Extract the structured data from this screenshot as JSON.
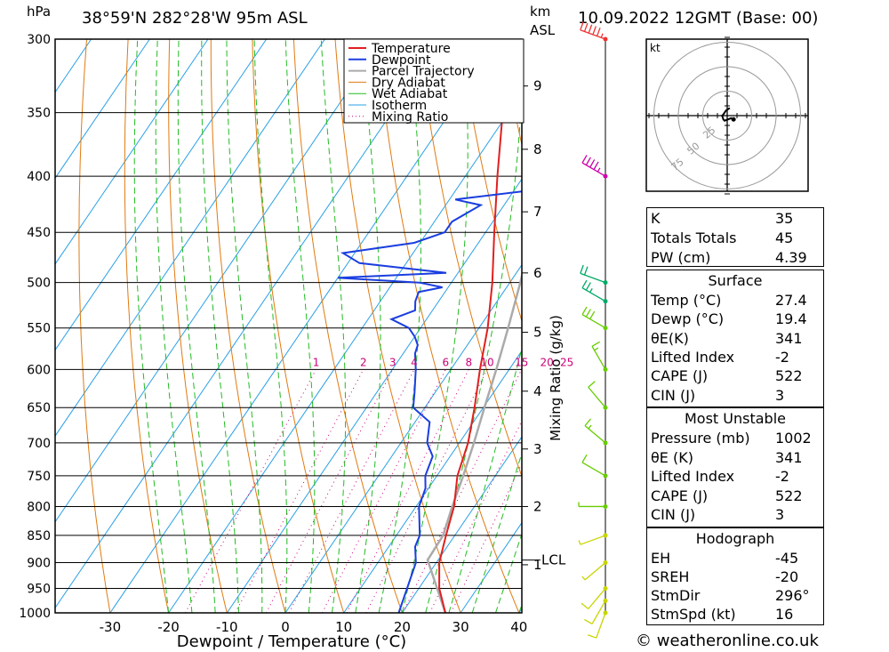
{
  "header": {
    "unit_hpa": "hPa",
    "location": "38°59'N  282°28'W  95m  ASL",
    "unit_km": "km",
    "unit_asl": "ASL",
    "datetime": "10.09.2022  12GMT  (Base: 00)"
  },
  "footer": {
    "copyright": "© weatheronline.co.uk"
  },
  "colors": {
    "temperature": "#e02020",
    "dewpoint": "#1a3ee0",
    "parcel": "#aaaaaa",
    "dry_adiabat": "#e07a10",
    "wet_adiabat": "#22bb22",
    "isotherm": "#2aa0e6",
    "mixing_ratio": "#cc0077"
  },
  "chart_data": {
    "type": "skew-t log-p",
    "xlabel": "Dewpoint / Temperature (°C)",
    "ylabel_left": "hPa",
    "ylabel_right": "Mixing Ratio (g/kg)",
    "pressure_ticks": [
      300,
      350,
      400,
      450,
      500,
      550,
      600,
      650,
      700,
      750,
      800,
      850,
      900,
      950,
      1000
    ],
    "temperature_ticks": [
      -30,
      -20,
      -10,
      0,
      10,
      20,
      30,
      40
    ],
    "height_km_ticks": [
      {
        "km": 1,
        "p": 904
      },
      {
        "km": 2,
        "p": 800
      },
      {
        "km": 3,
        "p": 709
      },
      {
        "km": 4,
        "p": 628
      },
      {
        "km": 5,
        "p": 555
      },
      {
        "km": 6,
        "p": 490
      },
      {
        "km": 7,
        "p": 431
      },
      {
        "km": 8,
        "p": 378
      },
      {
        "km": 9,
        "p": 331
      }
    ],
    "lcl": {
      "label": "LCL",
      "p": 895
    },
    "mixing_ratio_labels": [
      "1",
      "2",
      "3",
      "4",
      "6",
      "8",
      "10",
      "15",
      "20",
      "25"
    ],
    "mixing_ratio_values": [
      1,
      2,
      3,
      4,
      6,
      8,
      10,
      15,
      20,
      25
    ],
    "legend": [
      "Temperature",
      "Dewpoint",
      "Parcel Trajectory",
      "Dry Adiabat",
      "Wet Adiabat",
      "Isotherm",
      "Mixing Ratio"
    ],
    "temperature": [
      [
        1000,
        27.4
      ],
      [
        950,
        23.5
      ],
      [
        900,
        20.5
      ],
      [
        850,
        18.5
      ],
      [
        800,
        16.5
      ],
      [
        750,
        13.5
      ],
      [
        700,
        11.5
      ],
      [
        650,
        8.5
      ],
      [
        600,
        5
      ],
      [
        550,
        1.5
      ],
      [
        500,
        -3
      ],
      [
        450,
        -8.5
      ],
      [
        400,
        -14.5
      ],
      [
        350,
        -21
      ],
      [
        300,
        -29
      ]
    ],
    "dewpoint": [
      [
        1000,
        19.4
      ],
      [
        950,
        18
      ],
      [
        900,
        16.5
      ],
      [
        870,
        14.5
      ],
      [
        850,
        14
      ],
      [
        800,
        10.5
      ],
      [
        770,
        9.5
      ],
      [
        750,
        8
      ],
      [
        720,
        7
      ],
      [
        700,
        4.5
      ],
      [
        670,
        2.5
      ],
      [
        650,
        -2
      ],
      [
        630,
        -3.5
      ],
      [
        600,
        -6
      ],
      [
        580,
        -8
      ],
      [
        570,
        -8.5
      ],
      [
        560,
        -10
      ],
      [
        550,
        -12
      ],
      [
        540,
        -16
      ],
      [
        530,
        -13
      ],
      [
        520,
        -14
      ],
      [
        510,
        -14.5
      ],
      [
        505,
        -11
      ],
      [
        500,
        -15.5
      ],
      [
        495,
        -30
      ],
      [
        490,
        -12
      ],
      [
        480,
        -28
      ],
      [
        470,
        -32
      ],
      [
        460,
        -21
      ],
      [
        450,
        -17
      ],
      [
        440,
        -17
      ],
      [
        425,
        -14
      ],
      [
        420,
        -19
      ],
      [
        410,
        -4
      ],
      [
        400,
        -3
      ],
      [
        380,
        -9
      ],
      [
        350,
        -14
      ],
      [
        300,
        -26
      ]
    ],
    "parcel": [
      [
        1000,
        27.4
      ],
      [
        895,
        18.2
      ],
      [
        850,
        18
      ],
      [
        800,
        16.2
      ],
      [
        750,
        14.5
      ],
      [
        700,
        12.5
      ],
      [
        650,
        10.2
      ],
      [
        600,
        7.8
      ],
      [
        550,
        5
      ],
      [
        500,
        1.8
      ],
      [
        450,
        -2
      ],
      [
        400,
        -6.8
      ],
      [
        350,
        -13
      ],
      [
        300,
        -21
      ]
    ],
    "wind_profile": [
      {
        "p": 1000,
        "dir": 200,
        "kt": 10
      },
      {
        "p": 975,
        "dir": 210,
        "kt": 12
      },
      {
        "p": 950,
        "dir": 220,
        "kt": 10
      },
      {
        "p": 900,
        "dir": 230,
        "kt": 5
      },
      {
        "p": 850,
        "dir": 250,
        "kt": 5
      },
      {
        "p": 800,
        "dir": 270,
        "kt": 5
      },
      {
        "p": 750,
        "dir": 300,
        "kt": 10
      },
      {
        "p": 700,
        "dir": 310,
        "kt": 15
      },
      {
        "p": 650,
        "dir": 320,
        "kt": 10
      },
      {
        "p": 600,
        "dir": 330,
        "kt": 15
      },
      {
        "p": 550,
        "dir": 300,
        "kt": 30
      },
      {
        "p": 520,
        "dir": 300,
        "kt": 25
      },
      {
        "p": 500,
        "dir": 290,
        "kt": 20
      },
      {
        "p": 400,
        "dir": 300,
        "kt": 45
      },
      {
        "p": 300,
        "dir": 290,
        "kt": 55
      }
    ],
    "hodograph": {
      "unit": "kt",
      "ring_labels": [
        "25",
        "50",
        "75"
      ],
      "ring_values": [
        25,
        50,
        75
      ],
      "points": [
        [
          2,
          -6
        ],
        [
          -1,
          -4
        ],
        [
          -3,
          -1
        ],
        [
          -4,
          0
        ],
        [
          -3,
          3
        ],
        [
          -2,
          4
        ],
        [
          3,
          2
        ],
        [
          5,
          3
        ]
      ]
    }
  },
  "indices": [
    {
      "label": "K",
      "value": "35"
    },
    {
      "label": "Totals Totals",
      "value": "45"
    },
    {
      "label": "PW (cm)",
      "value": "4.39"
    }
  ],
  "surface": {
    "title": "Surface",
    "rows": [
      {
        "label": "Temp (°C)",
        "value": "27.4"
      },
      {
        "label": "Dewp (°C)",
        "value": "19.4"
      },
      {
        "label": "θE(K)",
        "value": "341"
      },
      {
        "label": "Lifted Index",
        "value": "-2"
      },
      {
        "label": "CAPE (J)",
        "value": "522"
      },
      {
        "label": "CIN (J)",
        "value": "3"
      }
    ]
  },
  "most_unstable": {
    "title": "Most Unstable",
    "rows": [
      {
        "label": "Pressure (mb)",
        "value": "1002"
      },
      {
        "label": "θE (K)",
        "value": "341"
      },
      {
        "label": "Lifted Index",
        "value": "-2"
      },
      {
        "label": "CAPE (J)",
        "value": "522"
      },
      {
        "label": "CIN (J)",
        "value": "3"
      }
    ]
  },
  "hodograph_table": {
    "title": "Hodograph",
    "rows": [
      {
        "label": "EH",
        "value": "-45"
      },
      {
        "label": "SREH",
        "value": "-20"
      },
      {
        "label": "StmDir",
        "value": "296°"
      },
      {
        "label": "StmSpd (kt)",
        "value": "16"
      }
    ]
  }
}
